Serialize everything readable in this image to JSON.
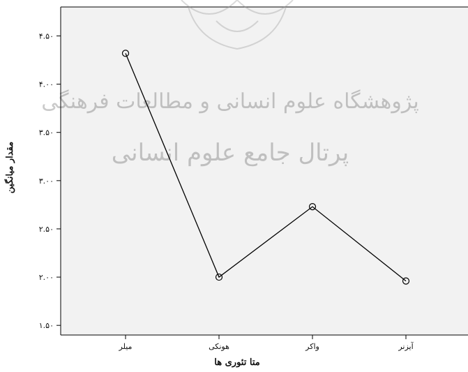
{
  "chart_data": {
    "type": "line",
    "categories": [
      "میلر",
      "هونکی",
      "واکر",
      "آیزنر"
    ],
    "series": [
      {
        "values": [
          4.32,
          2.0,
          2.73,
          1.96
        ]
      }
    ],
    "ylim": [
      1.4,
      4.8
    ],
    "yticks": [
      1.5,
      2.0,
      2.5,
      3.0,
      3.5,
      4.0,
      4.5
    ],
    "ytick_labels": [
      "۱.۵۰",
      "۲.۰۰",
      "۲.۵۰",
      "۳.۰۰",
      "۳.۵۰",
      "۴.۰۰",
      "۴.۵۰"
    ],
    "xlabel": "متا تئوری ها",
    "ylabel": "مقدار میانگین",
    "grid": false,
    "colors": {
      "plot_background": "#f2f2f2",
      "line": "#000000"
    }
  },
  "watermark": {
    "line1": "پژوهشگاه علوم انسانی و مطالعات فرهنگی",
    "line2": "پرتال جامع علوم انسانی"
  }
}
